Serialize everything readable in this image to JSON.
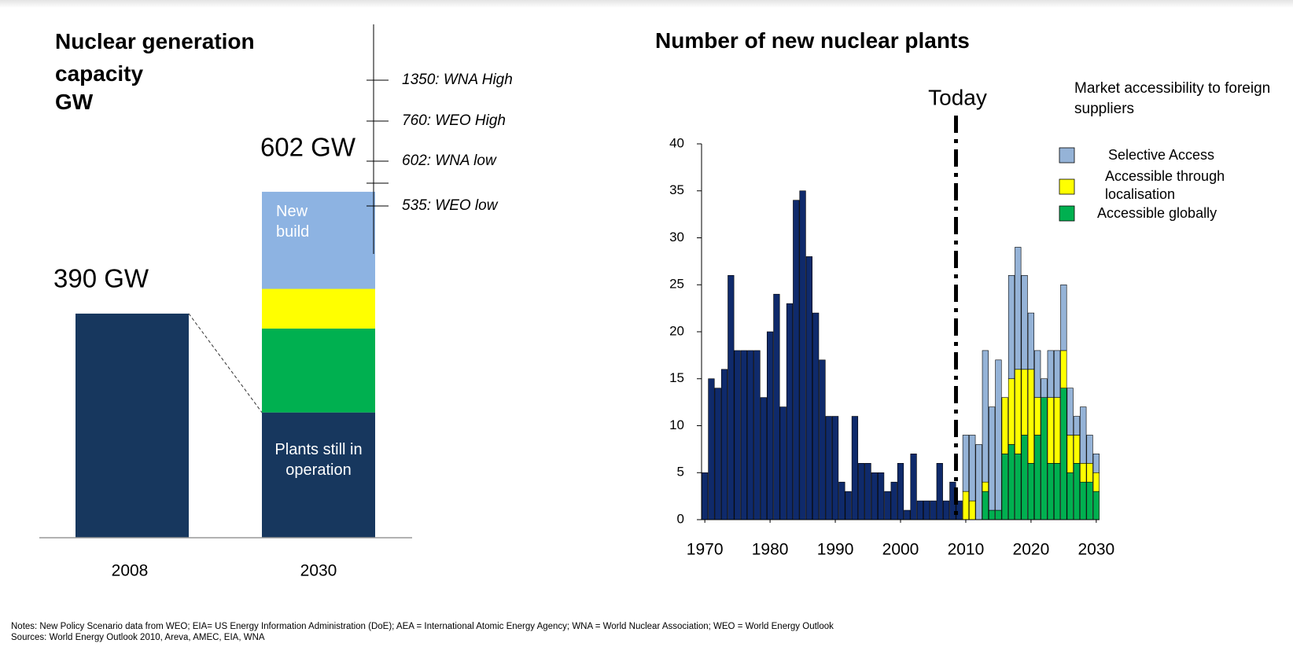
{
  "notes": [
    "Notes: New Policy Scenario data from WEO; EIA= US Energy Information Administration (DoE); AEA = International Atomic Energy Agency; WNA = World Nuclear Association; WEO = World Energy Outlook",
    "Sources:  World Energy Outlook 2010, Areva, AMEC, EIA, WNA"
  ],
  "chart_data": [
    {
      "type": "bar",
      "stacked": true,
      "title": "Nuclear generation capacity",
      "unit": "GW",
      "categories": [
        "2008",
        "2030"
      ],
      "series": [
        {
          "name": "Plants still in operation",
          "color": "#17375e",
          "values": [
            390,
            218
          ]
        },
        {
          "color": "#00b050",
          "values": [
            null,
            146
          ]
        },
        {
          "color": "#ffff00",
          "values": [
            null,
            69
          ]
        },
        {
          "name": "New build",
          "color": "#8db3e2",
          "values": [
            null,
            169
          ]
        }
      ],
      "totals": [
        390,
        602
      ],
      "total_labels": [
        "390 GW",
        "602 GW"
      ],
      "annotations": [
        "1350: WNA High",
        "760: WEO High",
        "602: WNA low",
        "535: WEO low"
      ]
    },
    {
      "type": "bar",
      "stacked": true,
      "title": "Number of new nuclear plants",
      "x": [
        1970,
        1971,
        1972,
        1973,
        1974,
        1975,
        1976,
        1977,
        1978,
        1979,
        1980,
        1981,
        1982,
        1983,
        1984,
        1985,
        1986,
        1987,
        1988,
        1989,
        1990,
        1991,
        1992,
        1993,
        1994,
        1995,
        1996,
        1997,
        1998,
        1999,
        2000,
        2001,
        2002,
        2003,
        2004,
        2005,
        2006,
        2007,
        2008,
        2009,
        2010,
        2011,
        2012,
        2013,
        2014,
        2015,
        2016,
        2017,
        2018,
        2019,
        2020,
        2021,
        2022,
        2023,
        2024,
        2025,
        2026,
        2027,
        2028,
        2029,
        2030
      ],
      "xlim": [
        1969.5,
        2030.5
      ],
      "xticks": [
        1970,
        1980,
        1990,
        2000,
        2010,
        2020,
        2030
      ],
      "ylim": [
        0,
        40
      ],
      "yticks": [
        0,
        5,
        10,
        15,
        20,
        25,
        30,
        35,
        40
      ],
      "legend_title": "Market accessibility to foreign suppliers",
      "legend_position": "upper right",
      "annotation": {
        "text": "Today",
        "x": 2008.5
      },
      "series": [
        {
          "color": "#0f2a6b",
          "values": [
            5,
            15,
            14,
            16,
            26,
            18,
            18,
            18,
            18,
            13,
            20,
            24,
            12,
            23,
            34,
            35,
            28,
            22,
            17,
            11,
            11,
            4,
            3,
            11,
            6,
            6,
            5,
            5,
            3,
            4,
            6,
            1,
            7,
            2,
            2,
            2,
            6,
            2,
            4,
            2,
            null,
            null,
            null,
            null,
            null,
            null,
            null,
            null,
            null,
            null,
            null,
            null,
            null,
            null,
            null,
            null,
            null,
            null,
            null,
            null,
            null
          ]
        },
        {
          "name": "Accessible globally",
          "color": "#00b050",
          "values": [
            null,
            null,
            null,
            null,
            null,
            null,
            null,
            null,
            null,
            null,
            null,
            null,
            null,
            null,
            null,
            null,
            null,
            null,
            null,
            null,
            null,
            null,
            null,
            null,
            null,
            null,
            null,
            null,
            null,
            null,
            null,
            null,
            null,
            null,
            null,
            null,
            null,
            null,
            null,
            null,
            0,
            0,
            0,
            3,
            1,
            1,
            7,
            8,
            7,
            9,
            6,
            9,
            13,
            6,
            6,
            14,
            5,
            6,
            4,
            4,
            3
          ]
        },
        {
          "name": "Accessible through localisation",
          "color": "#ffff00",
          "values": [
            null,
            null,
            null,
            null,
            null,
            null,
            null,
            null,
            null,
            null,
            null,
            null,
            null,
            null,
            null,
            null,
            null,
            null,
            null,
            null,
            null,
            null,
            null,
            null,
            null,
            null,
            null,
            null,
            null,
            null,
            null,
            null,
            null,
            null,
            null,
            null,
            null,
            null,
            null,
            null,
            3,
            2,
            0,
            1,
            0,
            0,
            6,
            7,
            9,
            7,
            10,
            4,
            0,
            7,
            7,
            4,
            4,
            3,
            2,
            2,
            2
          ]
        },
        {
          "name": "Selective Access",
          "color": "#95b3d7",
          "values": [
            null,
            null,
            null,
            null,
            null,
            null,
            null,
            null,
            null,
            null,
            null,
            null,
            null,
            null,
            null,
            null,
            null,
            null,
            null,
            null,
            null,
            null,
            null,
            null,
            null,
            null,
            null,
            null,
            null,
            null,
            null,
            null,
            null,
            null,
            null,
            null,
            null,
            null,
            null,
            null,
            6,
            7,
            8,
            14,
            11,
            16,
            0,
            11,
            13,
            10,
            6,
            5,
            2,
            5,
            5,
            7,
            5,
            2,
            6,
            3,
            2
          ]
        }
      ]
    }
  ]
}
